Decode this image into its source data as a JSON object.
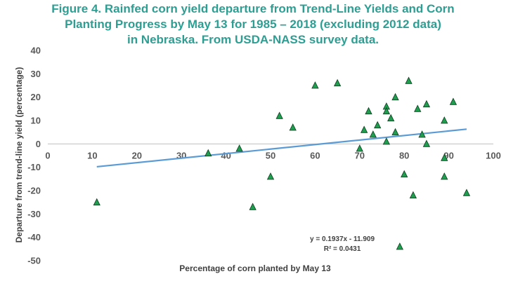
{
  "chart_data": {
    "type": "scatter",
    "title_lines": [
      "Figure 4. Rainfed corn yield departure from Trend-Line Yields and Corn",
      "Planting Progress by May 13 for 1985 – 2018 (excluding 2012 data)",
      "in Nebraska. From USDA-NASS survey data."
    ],
    "xlabel": "Percentage of corn planted by May 13",
    "ylabel": "Departure from trend-line yield (percentage)",
    "xlim": [
      0,
      100
    ],
    "ylim": [
      -50,
      40
    ],
    "x_ticks": [
      "0",
      "10",
      "20",
      "30",
      "40",
      "50",
      "60",
      "70",
      "80",
      "90",
      "100"
    ],
    "y_ticks": [
      "40",
      "30",
      "20",
      "10",
      "0",
      "-10",
      "-20",
      "-30",
      "-40",
      "-50"
    ],
    "grid": false,
    "marker": "triangle",
    "marker_color": "#1e9e4e",
    "trend_color": "#5b9bd5",
    "points": [
      {
        "x": 11,
        "y": -25
      },
      {
        "x": 36,
        "y": -4
      },
      {
        "x": 43,
        "y": -2
      },
      {
        "x": 46,
        "y": -27
      },
      {
        "x": 50,
        "y": -14
      },
      {
        "x": 52,
        "y": 12
      },
      {
        "x": 55,
        "y": 7
      },
      {
        "x": 60,
        "y": 25
      },
      {
        "x": 65,
        "y": 26
      },
      {
        "x": 70,
        "y": -2
      },
      {
        "x": 71,
        "y": 6
      },
      {
        "x": 72,
        "y": 14
      },
      {
        "x": 73,
        "y": 4
      },
      {
        "x": 74,
        "y": 8
      },
      {
        "x": 76,
        "y": 1
      },
      {
        "x": 76,
        "y": 16
      },
      {
        "x": 76,
        "y": 14
      },
      {
        "x": 77,
        "y": 11
      },
      {
        "x": 78,
        "y": 20
      },
      {
        "x": 78,
        "y": 5
      },
      {
        "x": 79,
        "y": -44
      },
      {
        "x": 80,
        "y": -13
      },
      {
        "x": 81,
        "y": 27
      },
      {
        "x": 82,
        "y": -22
      },
      {
        "x": 83,
        "y": 15
      },
      {
        "x": 84,
        "y": 4
      },
      {
        "x": 85,
        "y": 17
      },
      {
        "x": 85,
        "y": 0
      },
      {
        "x": 89,
        "y": 10
      },
      {
        "x": 89,
        "y": -6
      },
      {
        "x": 89,
        "y": -14
      },
      {
        "x": 91,
        "y": 18
      },
      {
        "x": 94,
        "y": -21
      }
    ],
    "trendline": {
      "slope": 0.1937,
      "intercept": -11.909,
      "x_range": [
        11,
        94
      ],
      "equation": "y = 0.1937x - 11.909",
      "r_squared": "R² = 0.0431"
    }
  }
}
